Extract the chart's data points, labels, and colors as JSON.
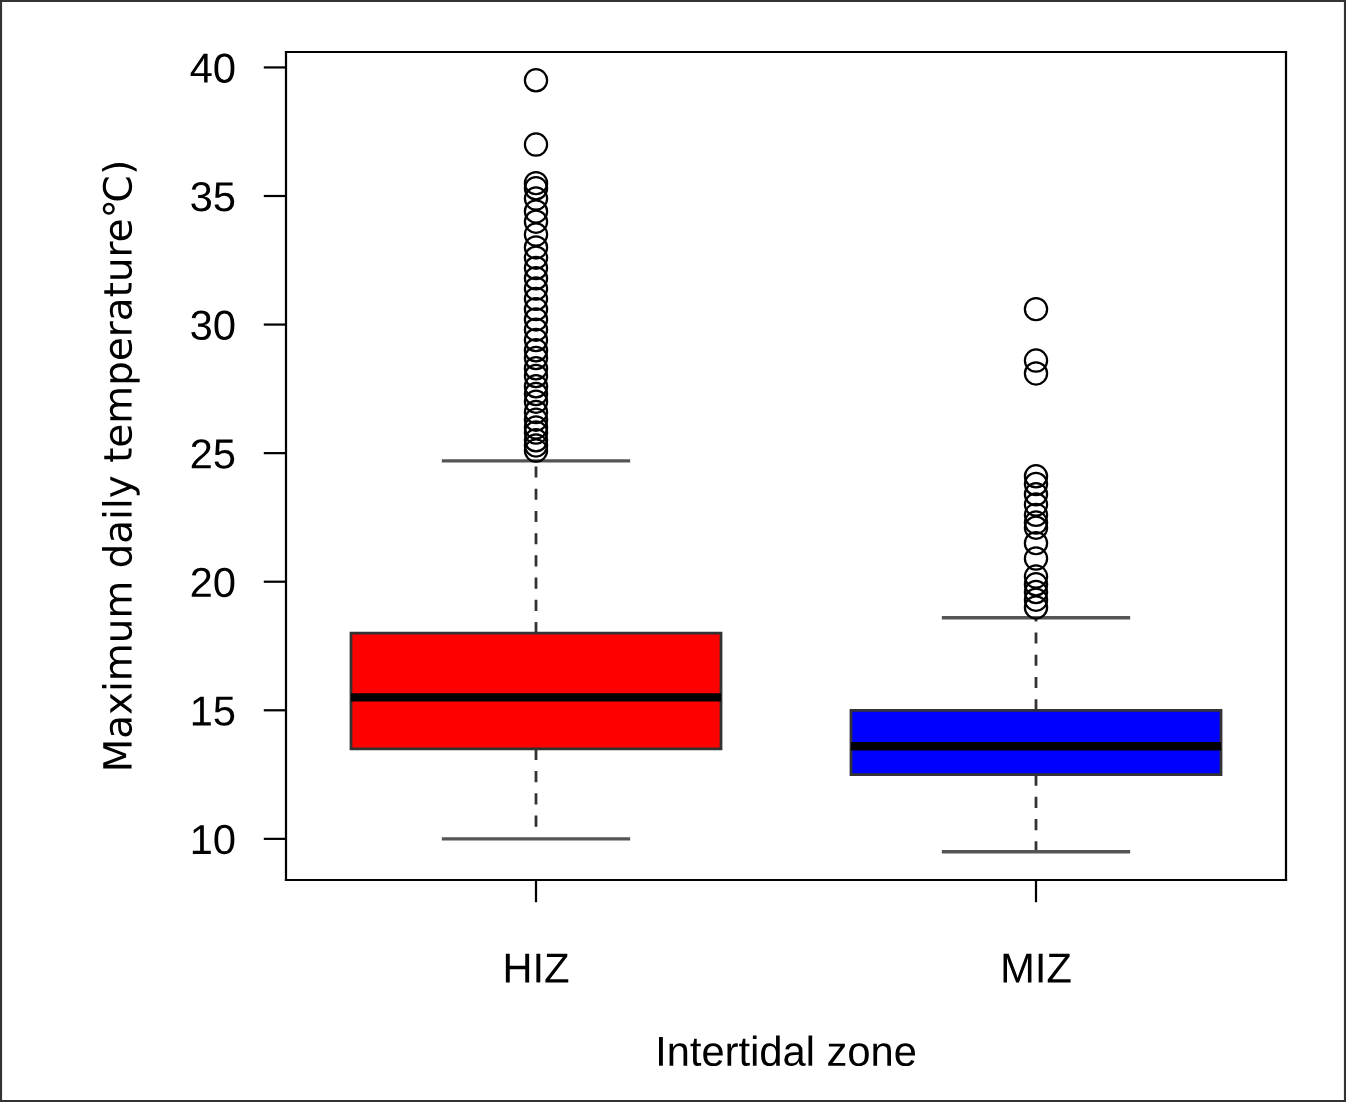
{
  "chart_data": {
    "type": "box",
    "xlabel": "Intertidal zone",
    "ylabel": "Maximum daily temperature℃)",
    "categories": [
      "HIZ",
      "MIZ"
    ],
    "ylim": [
      8.4,
      40.6
    ],
    "yticks": [
      10,
      15,
      20,
      25,
      30,
      35,
      40
    ],
    "grid": false,
    "marker": "circle",
    "colors": [
      "#ff0000",
      "#0000ff"
    ],
    "boxes": [
      {
        "low": 10,
        "q1": 13.5,
        "median": 15.5,
        "q3": 18,
        "high": 24.7,
        "outliers": [
          25.1,
          25.3,
          25.5,
          25.8,
          26.0,
          26.3,
          26.6,
          27.0,
          27.3,
          27.6,
          28.0,
          28.3,
          28.7,
          29.0,
          29.4,
          29.8,
          30.2,
          30.6,
          31.0,
          31.4,
          31.8,
          32.2,
          32.6,
          33.0,
          33.5,
          34.0,
          34.4,
          34.9,
          35.3,
          35.5,
          37,
          39.5
        ]
      },
      {
        "low": 9.5,
        "q1": 12.5,
        "median": 13.6,
        "q3": 15,
        "high": 18.6,
        "outliers": [
          19.0,
          19.3,
          19.6,
          19.9,
          20.2,
          20.9,
          21.5,
          22.1,
          22.3,
          22.6,
          23.0,
          23.4,
          23.8,
          24.1,
          28.1,
          28.6,
          30.6
        ]
      }
    ]
  }
}
